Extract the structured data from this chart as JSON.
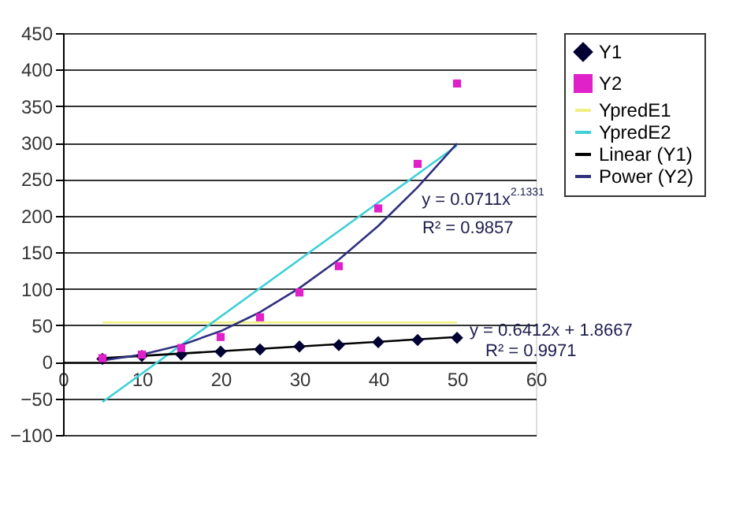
{
  "chart_data": {
    "type": "scatter",
    "xlim": [
      0,
      60
    ],
    "xticks": [
      0,
      10,
      20,
      30,
      40,
      50,
      60
    ],
    "ylim": [
      -100,
      450
    ],
    "yticks": [
      -100,
      -50,
      0,
      50,
      100,
      150,
      200,
      250,
      300,
      350,
      400,
      450
    ],
    "grid": "y",
    "legend": "right",
    "series": [
      {
        "name": "Y1",
        "marker": "diamond",
        "color": "#000033",
        "x": [
          5,
          10,
          15,
          20,
          25,
          30,
          35,
          40,
          45,
          50
        ],
        "values": [
          4,
          8,
          10,
          14,
          17,
          21,
          23,
          27,
          30,
          33
        ]
      },
      {
        "name": "Y2",
        "marker": "square",
        "color": "#e020c8",
        "x": [
          5,
          10,
          15,
          20,
          25,
          30,
          35,
          40,
          45,
          50
        ],
        "values": [
          5,
          10,
          19,
          34,
          61,
          95,
          131,
          210,
          271,
          381
        ]
      },
      {
        "name": "YpredE1",
        "type": "line",
        "marker": "none",
        "color": "#f0f080",
        "x": [
          5,
          50
        ],
        "values": [
          54,
          54
        ]
      },
      {
        "name": "YpredE2",
        "type": "line",
        "marker": "none",
        "color": "#40d0d8",
        "x": [
          5,
          50
        ],
        "values": [
          -55,
          296
        ]
      },
      {
        "name": "Linear (Y1)",
        "type": "line",
        "marker": "none",
        "color": "#000000",
        "x": [
          5,
          50
        ],
        "values": [
          5,
          34
        ]
      },
      {
        "name": "Power (Y2)",
        "type": "line",
        "marker": "none",
        "color": "#303080",
        "x": [
          5,
          10,
          15,
          20,
          25,
          30,
          35,
          40,
          45,
          50
        ],
        "values": [
          2,
          10,
          23,
          42,
          68,
          101,
          140,
          186,
          239,
          299
        ]
      }
    ],
    "annotations": [
      "y = 0.0711x$^{2.1331}$",
      "R² = 0.9857",
      "y = 0.6412x + 1.8667",
      "R² = 0.9971"
    ]
  }
}
